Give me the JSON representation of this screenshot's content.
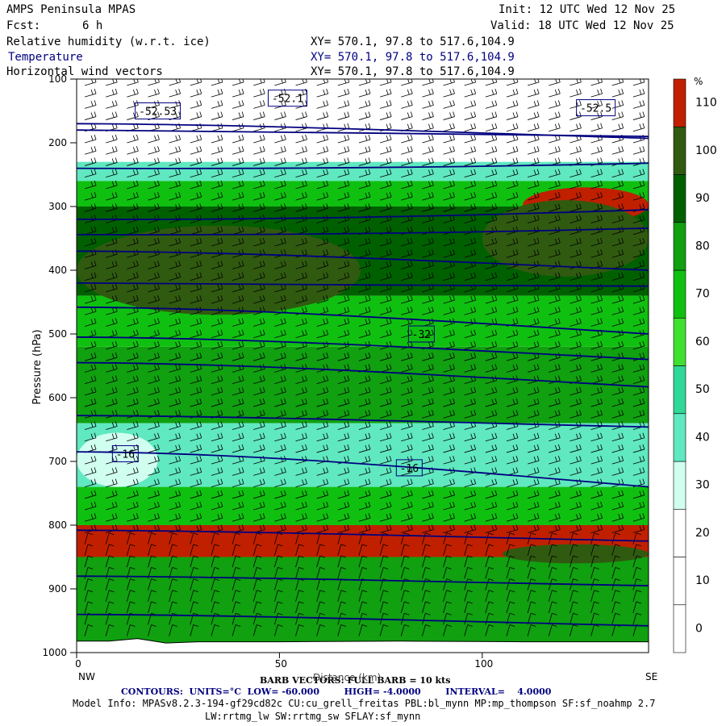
{
  "header": {
    "title": "AMPS Peninsula MPAS",
    "fcst_label": "Fcst:",
    "fcst_value": "6 h",
    "init": "Init: 12 UTC Wed 12 Nov 25",
    "valid": "Valid: 18 UTC Wed 12 Nov 25",
    "field_rh": "Relative humidity (w.r.t. ice)",
    "field_temp": "Temperature",
    "field_wind": "Horizontal wind vectors",
    "xy": "XY= 570.1, 97.8 to 517.6,104.9"
  },
  "footer": {
    "barb_line": "BARB VECTORS: FULL BARB = 10 kts",
    "distance_label": "Distance (km)",
    "contours_line": "CONTOURS:  UNITS=°C  LOW= -60.000        HIGH= -4.0000        INTERVAL=    4.0000",
    "model_info": "Model Info: MPASv8.2.3-194-gf29cd82c CU:cu_grell_freitas PBL:bl_mynn MP:mp_thompson SF:sf_noahmp 2.7",
    "model_info2": "LW:rrtmg_lw SW:rrtmg_sw SFLAY:sf_mynn",
    "left_end": "NW",
    "right_end": "SE"
  },
  "colors": {
    "rh_levels": [
      "#ffffff",
      "#ffffff",
      "#ffffff",
      "#d0fff0",
      "#60e8c0",
      "#30d898",
      "#40e030",
      "#10c010",
      "#10a010",
      "#006000",
      "#305a10",
      "#c02000"
    ],
    "contour": "#000080",
    "frame": "#000000"
  },
  "chart_data": {
    "type": "heatmap",
    "title": "Relative humidity (w.r.t. ice), Temperature, Horizontal wind vectors",
    "ylabel": "Pressure (hPa)",
    "xlabel": "Distance (km)",
    "xlim": [
      0,
      141
    ],
    "ylim": [
      1000,
      100
    ],
    "x_ticks": [
      0,
      50,
      100
    ],
    "y_ticks": [
      100,
      200,
      300,
      400,
      500,
      600,
      700,
      800,
      900,
      1000
    ],
    "colorbar": {
      "unit": "%",
      "levels": [
        0,
        10,
        20,
        30,
        40,
        50,
        60,
        70,
        80,
        90,
        100,
        110
      ]
    },
    "rh_layers": [
      {
        "top": 100,
        "bottom": 230,
        "rh": 10
      },
      {
        "top": 230,
        "bottom": 260,
        "rh": 40
      },
      {
        "top": 260,
        "bottom": 300,
        "rh": 75
      },
      {
        "top": 300,
        "bottom": 440,
        "rh": 90
      },
      {
        "top": 440,
        "bottom": 520,
        "rh": 70
      },
      {
        "top": 520,
        "bottom": 640,
        "rh": 80
      },
      {
        "top": 640,
        "bottom": 740,
        "rh": 40
      },
      {
        "top": 740,
        "bottom": 800,
        "rh": 75
      },
      {
        "top": 800,
        "bottom": 850,
        "rh": 110
      },
      {
        "top": 850,
        "bottom": 1000,
        "rh": 85
      }
    ],
    "rh_features": [
      {
        "x0": 0,
        "x1": 20,
        "p0": 655,
        "p1": 740,
        "rh": 30
      },
      {
        "x0": 110,
        "x1": 141,
        "p0": 270,
        "p1": 325,
        "rh": 110
      },
      {
        "x0": 0,
        "x1": 70,
        "p0": 330,
        "p1": 470,
        "rh": 100
      },
      {
        "x0": 100,
        "x1": 141,
        "p0": 290,
        "p1": 410,
        "rh": 100
      },
      {
        "x0": 105,
        "x1": 141,
        "p0": 830,
        "p1": 860,
        "rh": 100
      }
    ],
    "temperature_contours": [
      {
        "value": -52,
        "p_left": 170,
        "p_right": 193
      },
      {
        "value": -56,
        "p_left": 180,
        "p_right": 190
      },
      {
        "value": -52,
        "p_left": 240,
        "p_right": 232
      },
      {
        "value": -48,
        "p_left": 320,
        "p_right": 305
      },
      {
        "value": -44,
        "p_left": 344,
        "p_right": 334
      },
      {
        "value": -40,
        "p_left": 370,
        "p_right": 400
      },
      {
        "value": -36,
        "p_left": 420,
        "p_right": 425
      },
      {
        "value": -32,
        "p_left": 458,
        "p_right": 500
      },
      {
        "value": -28,
        "p_left": 505,
        "p_right": 540
      },
      {
        "value": -24,
        "p_left": 545,
        "p_right": 583
      },
      {
        "value": -20,
        "p_left": 628,
        "p_right": 646
      },
      {
        "value": -16,
        "p_left": 685,
        "p_right": 740
      },
      {
        "value": -12,
        "p_left": 808,
        "p_right": 825
      },
      {
        "value": -8,
        "p_left": 880,
        "p_right": 895
      },
      {
        "value": -4,
        "p_left": 940,
        "p_right": 958
      }
    ],
    "contour_labels": [
      {
        "text": "-52.53",
        "x": 20,
        "p": 150
      },
      {
        "text": "-52.1",
        "x": 52,
        "p": 130
      },
      {
        "text": "-52.5",
        "x": 128,
        "p": 145
      },
      {
        "text": "-32",
        "x": 85,
        "p": 500
      },
      {
        "text": "-16",
        "x": 12,
        "p": 688
      },
      {
        "text": "-16",
        "x": 82,
        "p": 710
      }
    ]
  }
}
